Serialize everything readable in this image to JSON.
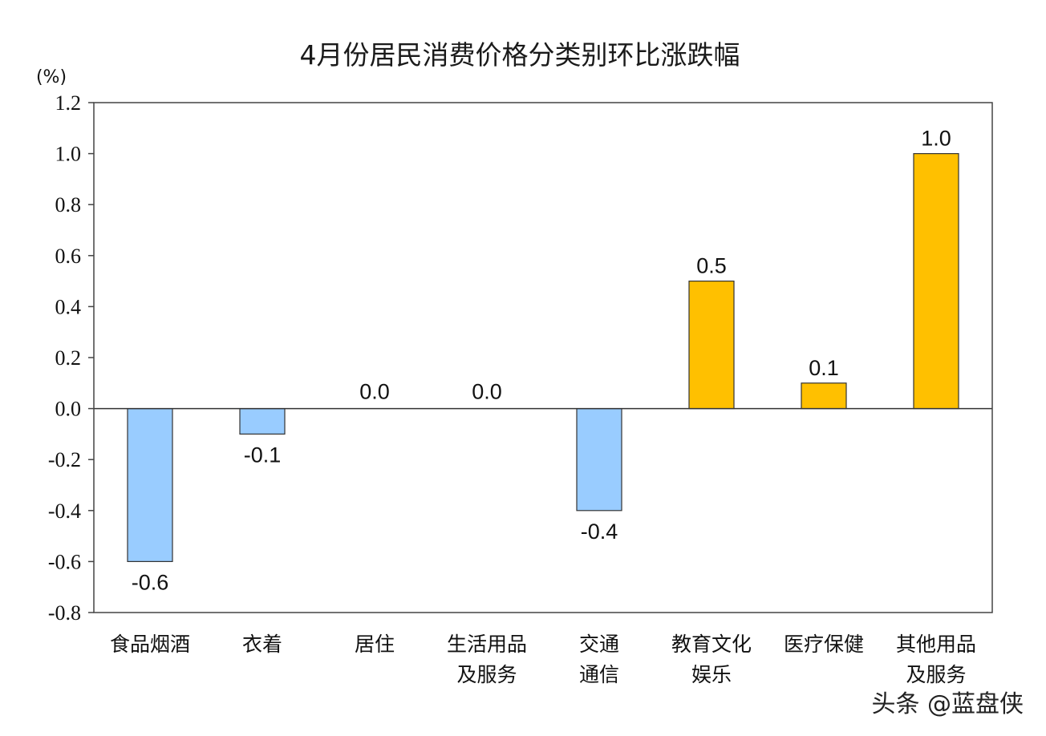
{
  "chart_data": {
    "type": "bar",
    "title": "4月份居民消费价格分类别环比涨跌幅",
    "unit_label": "(%)",
    "categories": [
      [
        "食品烟酒"
      ],
      [
        "衣着"
      ],
      [
        "居住"
      ],
      [
        "生活用品",
        "及服务"
      ],
      [
        "交通",
        "通信"
      ],
      [
        "教育文化",
        "娱乐"
      ],
      [
        "医疗保健"
      ],
      [
        "其他用品",
        "及服务"
      ]
    ],
    "values": [
      -0.6,
      -0.1,
      0.0,
      0.0,
      -0.4,
      0.5,
      0.1,
      1.0
    ],
    "value_labels": [
      "-0.6",
      "-0.1",
      "0.0",
      "0.0",
      "-0.4",
      "0.5",
      "0.1",
      "1.0"
    ],
    "ylim": [
      -0.8,
      1.2
    ],
    "yticks": [
      1.2,
      1.0,
      0.8,
      0.6,
      0.4,
      0.2,
      0.0,
      -0.2,
      -0.4,
      -0.6,
      -0.8
    ],
    "ytick_labels": [
      "1.2",
      "1.0",
      "0.8",
      "0.6",
      "0.4",
      "0.2",
      "0.0",
      "-0.2",
      "-0.4",
      "-0.6",
      "-0.8"
    ],
    "grid": false,
    "colors": {
      "positive": "#FFC000",
      "negative": "#99CCFF",
      "outline": "#333333"
    }
  },
  "watermark": "头条 @蓝盘侠"
}
